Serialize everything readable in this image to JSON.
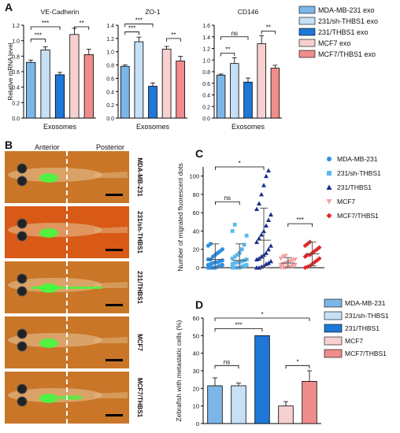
{
  "panels": {
    "a": "A",
    "b": "B",
    "c": "C",
    "d": "D"
  },
  "panel_b": {
    "headers": [
      "Anterior",
      "Posterior"
    ],
    "rows": [
      "MDA-MB-231",
      "231/sh-THBS1",
      "231/THBS1",
      "MCF7",
      "MCF7/THBS1"
    ]
  },
  "colors": {
    "mda": "#7cb6e8",
    "sh": "#c6e0f5",
    "thbs1": "#1f77d8",
    "mcf7": "#f7d0d0",
    "mcf7thbs1": "#f08c8c",
    "fish_bg": "#c8701e",
    "fish_green": "#3cff3c"
  },
  "chart_data": [
    {
      "id": "A1",
      "type": "bar",
      "title": "VE-Cadherin",
      "ylabel": "Relative mRNA level",
      "xlabel": "Exosomes",
      "ylim": [
        0,
        1.2
      ],
      "yticks": [
        "0.0",
        "0.2",
        "0.4",
        "0.6",
        "0.8",
        "1.0",
        "1.2"
      ],
      "values": [
        0.72,
        0.88,
        0.56,
        1.08,
        0.82
      ],
      "errors": [
        0.03,
        0.04,
        0.03,
        0.08,
        0.07
      ],
      "sig": [
        {
          "label": "***",
          "a": 0,
          "b": 1,
          "y": 1.02
        },
        {
          "label": "***",
          "a": 0,
          "b": 2,
          "y": 1.18
        },
        {
          "label": "**",
          "a": 3,
          "b": 4,
          "y": 1.18
        }
      ]
    },
    {
      "id": "A2",
      "type": "bar",
      "title": "ZO-1",
      "xlabel": "Exosomes",
      "ylim": [
        0,
        1.4
      ],
      "yticks": [
        "0.0",
        "0.2",
        "0.4",
        "0.6",
        "0.8",
        "1.0",
        "1.2",
        "1.4"
      ],
      "values": [
        0.78,
        1.15,
        0.48,
        1.04,
        0.86
      ],
      "errors": [
        0.02,
        0.07,
        0.05,
        0.04,
        0.07
      ],
      "sig": [
        {
          "label": "***",
          "a": 0,
          "b": 1,
          "y": 1.3
        },
        {
          "label": "***",
          "a": 0,
          "b": 2,
          "y": 1.42
        },
        {
          "label": "**",
          "a": 3,
          "b": 4,
          "y": 1.2
        }
      ]
    },
    {
      "id": "A3",
      "type": "bar",
      "title": "CD146",
      "xlabel": "Exosomes",
      "ylim": [
        0,
        1.6
      ],
      "yticks": [
        "0.0",
        "0.2",
        "0.4",
        "0.6",
        "0.8",
        "1.0",
        "1.2",
        "1.4",
        "1.6"
      ],
      "values": [
        0.74,
        0.94,
        0.62,
        1.28,
        0.86
      ],
      "errors": [
        0.02,
        0.1,
        0.07,
        0.14,
        0.05
      ],
      "sig": [
        {
          "label": "**",
          "a": 0,
          "b": 1,
          "y": 1.12
        },
        {
          "label": "ns",
          "a": 0,
          "b": 2,
          "y": 1.4
        },
        {
          "label": "**",
          "a": 3,
          "b": 4,
          "y": 1.5
        }
      ]
    },
    {
      "id": "C",
      "type": "scatter",
      "ylabel": "Number of migrated fluorescent dots",
      "ylim": [
        0,
        110
      ],
      "yticks": [
        "0",
        "20",
        "40",
        "60",
        "80",
        "100"
      ],
      "categories": [
        "MDA-MB-231",
        "231/sh-THBS1",
        "231/THBS1",
        "MCF7",
        "MCF7/THBS1"
      ],
      "means": [
        9,
        8,
        30,
        5,
        15
      ],
      "sd": [
        17,
        18,
        35,
        6,
        13
      ],
      "points": [
        [
          0,
          0,
          0,
          0,
          1,
          2,
          3,
          3,
          4,
          5,
          6,
          6,
          7,
          8,
          9,
          9,
          12,
          14,
          16,
          18,
          20,
          24,
          26
        ],
        [
          0,
          0,
          0,
          0,
          1,
          2,
          3,
          4,
          5,
          6,
          6,
          7,
          8,
          9,
          10,
          12,
          14,
          16,
          20,
          25,
          35,
          40,
          47
        ],
        [
          0,
          0,
          1,
          2,
          4,
          5,
          7,
          9,
          10,
          12,
          14,
          16,
          20,
          24,
          28,
          32,
          36,
          40,
          46,
          52,
          58,
          64,
          70,
          80,
          90,
          100,
          106
        ],
        [
          0,
          0,
          0,
          1,
          1,
          2,
          3,
          3,
          4,
          5,
          6,
          7,
          8,
          9,
          10,
          12,
          13
        ],
        [
          0,
          1,
          2,
          4,
          6,
          8,
          10,
          12,
          14,
          14,
          16,
          18,
          20,
          22,
          24,
          26,
          28
        ]
      ],
      "legend": [
        "MDA-MB-231",
        "231/sh-THBS1",
        "231/THBS1",
        "MCF7",
        "MCF7/THBS1"
      ],
      "sig": [
        {
          "label": "ns",
          "a": 0,
          "b": 1,
          "y": 72
        },
        {
          "label": "*",
          "a": 0,
          "b": 2,
          "y": 110
        },
        {
          "label": "***",
          "a": 3,
          "b": 4,
          "y": 48
        }
      ]
    },
    {
      "id": "D",
      "type": "bar",
      "ylabel": "Zebrafish with metastatic cells (%)",
      "ylim": [
        0,
        60
      ],
      "yticks": [
        "0",
        "10",
        "20",
        "30",
        "40",
        "50",
        "60"
      ],
      "values": [
        21.5,
        21.5,
        50,
        10,
        24
      ],
      "errors": [
        4.5,
        1.5,
        0,
        2.5,
        6
      ],
      "legend": [
        "MDA-MB-231",
        "231/sh-THBS1",
        "231/THBS1",
        "MCF7",
        "MCF7/THBS1"
      ],
      "sig": [
        {
          "label": "ns",
          "a": 0,
          "b": 1,
          "y": 33
        },
        {
          "label": "***",
          "a": 0,
          "b": 2,
          "y": 54
        },
        {
          "label": "*",
          "a": 0,
          "b": 4,
          "y": 60
        },
        {
          "label": "*",
          "a": 3,
          "b": 4,
          "y": 33
        }
      ]
    }
  ],
  "legend_a": [
    "MDA-MB-231 exo",
    "231/sh-THBS1 exo",
    "231/THBS1 exo",
    "MCF7 exo",
    "MCF7/THBS1 exo"
  ]
}
